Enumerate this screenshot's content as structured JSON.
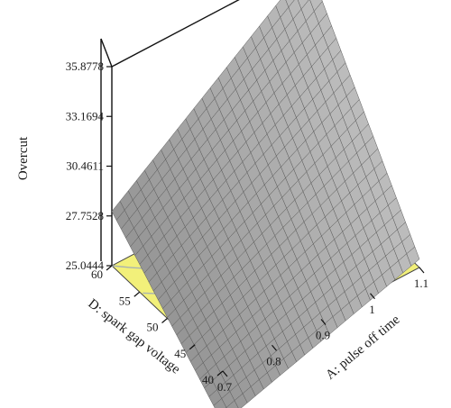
{
  "chart_data": {
    "type": "surface3d",
    "title": "",
    "zlabel": "Overcut",
    "xlabel": "A: pulse off time",
    "ylabel": "D: spark gap voltage",
    "x_ticks": [
      "0.7",
      "0.8",
      "0.9",
      "1",
      "1.1"
    ],
    "y_ticks": [
      "40",
      "45",
      "50",
      "55",
      "60"
    ],
    "z_ticks": [
      "25.0444",
      "27.7528",
      "30.4611",
      "33.1694",
      "35.8778"
    ],
    "xlim": [
      0.7,
      1.1
    ],
    "ylim": [
      40,
      60
    ],
    "zlim": [
      25.0444,
      35.8778
    ],
    "surface_corners": {
      "x0.7_y40": 22.2,
      "x1.1_y40": 25.5,
      "x0.7_y60": 28.0,
      "x1.1_y60": 35.8
    },
    "surface_color": "#9a9a9a",
    "contour_fill": "#f2f07a",
    "contour_line": "#a9b3b0"
  }
}
